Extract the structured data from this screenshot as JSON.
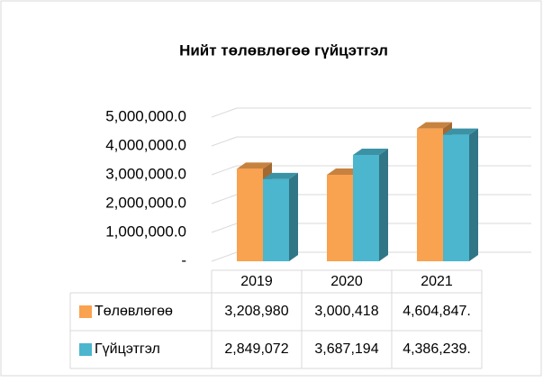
{
  "chart_data": {
    "type": "bar3d",
    "title": "Нийт төлөвлөгөө гүйцэтгэл",
    "categories": [
      "2019",
      "2020",
      "2021"
    ],
    "series": [
      {
        "name": "Төлөвлөгөө",
        "color": "#F9A24F",
        "values": [
          3208980,
          3000418,
          4604847
        ],
        "value_labels": [
          "3,208,980",
          "3,000,418",
          "4,604,847."
        ]
      },
      {
        "name": "Гүйцэтгэл",
        "color": "#4BB6CE",
        "values": [
          2849072,
          3687194,
          4386239
        ],
        "value_labels": [
          "2,849,072",
          "3,687,194",
          "4,386,239."
        ]
      }
    ],
    "ylim": [
      0,
      5000000
    ],
    "yticks": [
      {
        "value": 0,
        "label": "-"
      },
      {
        "value": 1000000,
        "label": "1,000,000.0"
      },
      {
        "value": 2000000,
        "label": "2,000,000.0"
      },
      {
        "value": 3000000,
        "label": "3,000,000.0"
      },
      {
        "value": 4000000,
        "label": "4,000,000.0"
      },
      {
        "value": 5000000,
        "label": "5,000,000.0"
      }
    ],
    "grid": true,
    "data_table": true
  }
}
